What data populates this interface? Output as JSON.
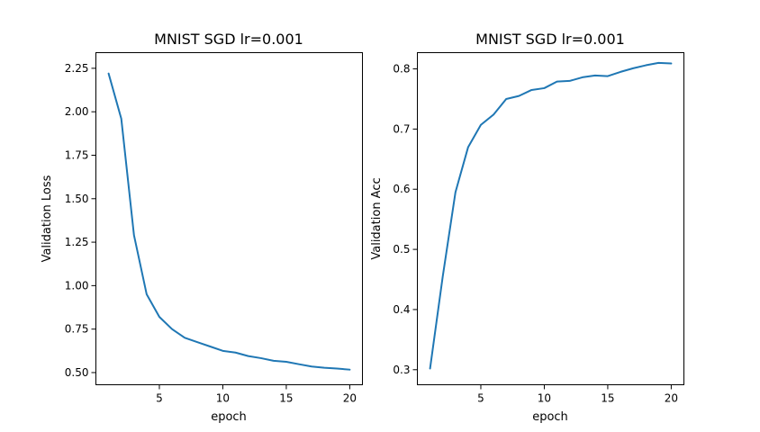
{
  "chart_data": [
    {
      "type": "line",
      "title": "MNIST SGD lr=0.001",
      "xlabel": "epoch",
      "ylabel": "Validation Loss",
      "xlim": [
        0,
        21
      ],
      "ylim": [
        0.43,
        2.34
      ],
      "xticks": [
        5,
        10,
        15,
        20
      ],
      "xtick_labels": [
        "5",
        "10",
        "15",
        "20"
      ],
      "yticks": [
        0.5,
        0.75,
        1.0,
        1.25,
        1.5,
        1.75,
        2.0,
        2.25
      ],
      "ytick_labels": [
        "0.50",
        "0.75",
        "1.00",
        "1.25",
        "1.50",
        "1.75",
        "2.00",
        "2.25"
      ],
      "grid": false,
      "x": [
        1,
        2,
        3,
        4,
        5,
        6,
        7,
        8,
        9,
        10,
        11,
        12,
        13,
        14,
        15,
        16,
        17,
        18,
        19,
        20
      ],
      "series": [
        {
          "color": "#1f77b4",
          "values": [
            2.22,
            1.96,
            1.29,
            0.95,
            0.82,
            0.75,
            0.7,
            0.675,
            0.65,
            0.625,
            0.615,
            0.595,
            0.583,
            0.568,
            0.562,
            0.548,
            0.535,
            0.528,
            0.523,
            0.517
          ]
        }
      ]
    },
    {
      "type": "line",
      "title": "MNIST SGD lr=0.001",
      "xlabel": "epoch",
      "ylabel": "Validation Acc",
      "xlim": [
        0,
        21
      ],
      "ylim": [
        0.275,
        0.827
      ],
      "xticks": [
        5,
        10,
        15,
        20
      ],
      "xtick_labels": [
        "5",
        "10",
        "15",
        "20"
      ],
      "yticks": [
        0.3,
        0.4,
        0.5,
        0.6,
        0.7,
        0.8
      ],
      "ytick_labels": [
        "0.3",
        "0.4",
        "0.5",
        "0.6",
        "0.7",
        "0.8"
      ],
      "grid": false,
      "x": [
        1,
        2,
        3,
        4,
        5,
        6,
        7,
        8,
        9,
        10,
        11,
        12,
        13,
        14,
        15,
        16,
        17,
        18,
        19,
        20
      ],
      "series": [
        {
          "color": "#1f77b4",
          "values": [
            0.302,
            0.455,
            0.595,
            0.67,
            0.707,
            0.724,
            0.75,
            0.755,
            0.765,
            0.768,
            0.779,
            0.78,
            0.786,
            0.789,
            0.788,
            0.795,
            0.801,
            0.806,
            0.81,
            0.809
          ]
        }
      ]
    }
  ]
}
